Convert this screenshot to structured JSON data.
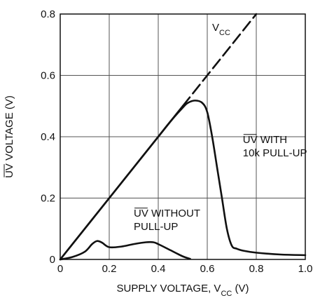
{
  "chart_data": {
    "type": "line",
    "xlabel_main": "SUPPLY VOLTAGE, V",
    "xlabel_sub": "CC",
    "xlabel_unit": " (V)",
    "ylabel_over": "UV",
    "ylabel_rest": " VOLTAGE (V)",
    "xlim": [
      0,
      1.0
    ],
    "ylim": [
      0,
      0.8
    ],
    "x_ticks": [
      0,
      0.2,
      0.4,
      0.6,
      0.8,
      1.0
    ],
    "x_tick_labels": [
      "0",
      "0.2",
      "0.4",
      "0.6",
      "0.8",
      "1.0"
    ],
    "y_ticks": [
      0,
      0.2,
      0.4,
      0.6,
      0.8
    ],
    "y_tick_labels": [
      "0",
      "0.2",
      "0.4",
      "0.6",
      "0.8"
    ],
    "grid": true,
    "series": [
      {
        "name": "VCC",
        "style": "solid-then-dashed",
        "solid_until_x": 0.5,
        "x": [
          0,
          0.8
        ],
        "y": [
          0,
          0.8
        ]
      },
      {
        "name": "UV WITH 10k PULL-UP",
        "style": "solid",
        "x": [
          0,
          0.1,
          0.2,
          0.3,
          0.4,
          0.45,
          0.5,
          0.52,
          0.55,
          0.58,
          0.6,
          0.62,
          0.64,
          0.66,
          0.68,
          0.7,
          0.72,
          0.75,
          0.8,
          0.9,
          1.0
        ],
        "y": [
          0,
          0.1,
          0.2,
          0.3,
          0.4,
          0.45,
          0.495,
          0.51,
          0.518,
          0.51,
          0.48,
          0.4,
          0.3,
          0.2,
          0.1,
          0.045,
          0.035,
          0.028,
          0.022,
          0.016,
          0.014
        ]
      },
      {
        "name": "UV WITHOUT PULL-UP",
        "style": "solid",
        "x": [
          0,
          0.05,
          0.1,
          0.13,
          0.15,
          0.17,
          0.2,
          0.25,
          0.3,
          0.35,
          0.38,
          0.4,
          0.45,
          0.5,
          0.53
        ],
        "y": [
          0,
          0.008,
          0.025,
          0.05,
          0.06,
          0.055,
          0.04,
          0.042,
          0.05,
          0.056,
          0.056,
          0.05,
          0.03,
          0.01,
          0.002
        ]
      }
    ],
    "annotations": [
      {
        "id": "vcc",
        "main": "V",
        "sub": "CC",
        "x": 0.62,
        "y": 0.745
      },
      {
        "id": "with",
        "over": "UV",
        "line1_rest": " WITH",
        "line2": "10k PULL-UP",
        "x": 0.745,
        "y": 0.38
      },
      {
        "id": "without",
        "over": "UV",
        "line1_rest": " WITHOUT",
        "line2": "PULL-UP",
        "x": 0.3,
        "y": 0.14
      }
    ]
  }
}
